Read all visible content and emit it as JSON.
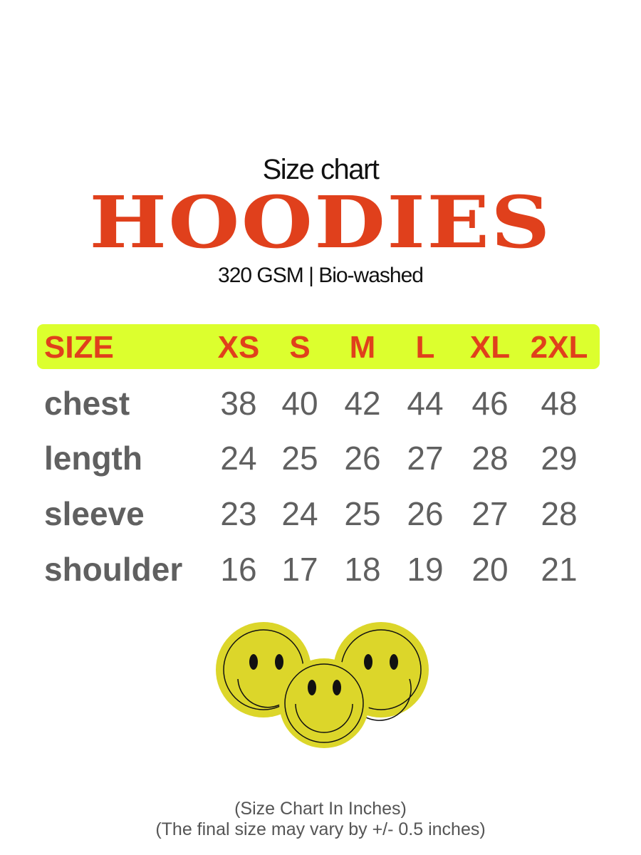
{
  "header": {
    "subtitle": "Size chart",
    "title": "HOODIES",
    "spec": "320 GSM | Bio-washed"
  },
  "table": {
    "header_label": "SIZE",
    "sizes": [
      "XS",
      "S",
      "M",
      "L",
      "XL",
      "2XL"
    ],
    "rows": [
      {
        "label": "chest",
        "values": [
          "38",
          "40",
          "42",
          "44",
          "46",
          "48"
        ]
      },
      {
        "label": "length",
        "values": [
          "24",
          "25",
          "26",
          "27",
          "28",
          "29"
        ]
      },
      {
        "label": "sleeve",
        "values": [
          "23",
          "24",
          "25",
          "26",
          "27",
          "28"
        ]
      },
      {
        "label": "shoulder",
        "values": [
          "16",
          "17",
          "18",
          "19",
          "20",
          "21"
        ]
      }
    ]
  },
  "illustration": {
    "icon": "three-smiley-faces",
    "color": "#dcd62a"
  },
  "footer": {
    "line1": "(Size Chart In Inches)",
    "line2": "(The final size may vary by +/- 0.5 inches)"
  },
  "colors": {
    "accent": "#e0401c",
    "highlight": "#dcff2e",
    "text_gray": "#606060"
  }
}
